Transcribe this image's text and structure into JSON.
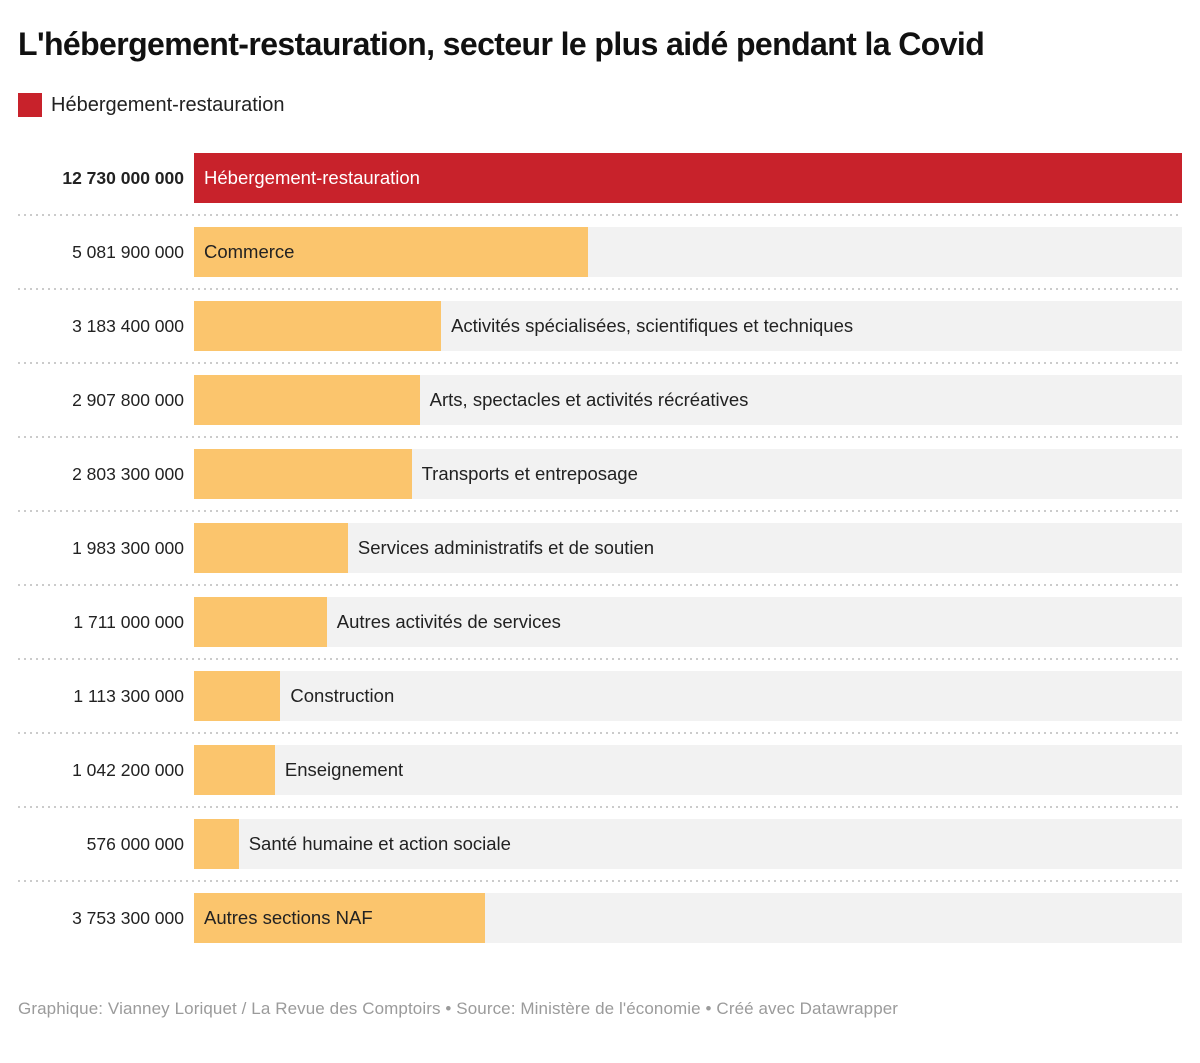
{
  "title": "L'hébergement-restauration, secteur le plus aidé pendant la Covid",
  "legend": {
    "label": "Hébergement-restauration",
    "swatch_color": "#c8222b"
  },
  "colors": {
    "highlight_bar": "#c8222b",
    "default_bar": "#fbc56d",
    "track": "#f2f2f2",
    "bar_label_dark": "#222222",
    "bar_label_light": "#ffffff",
    "separator": "#cbcbcb",
    "footer_text": "#9b9b9b"
  },
  "footer": "Graphique: Vianney Loriquet / La Revue des Comptoirs • Source: Ministère de l'économie • Créé avec Datawrapper",
  "chart_data": {
    "type": "bar",
    "orientation": "horizontal",
    "title": "L'hébergement-restauration, secteur le plus aidé pendant la Covid",
    "legend_position": "top-left",
    "grid": "off",
    "max_value": 12730000000,
    "rows": [
      {
        "category": "Hébergement-restauration",
        "value": 12730000000,
        "value_label": "12 730 000 000",
        "highlight": true,
        "label_position": "inside"
      },
      {
        "category": "Commerce",
        "value": 5081900000,
        "value_label": "5 081 900 000",
        "highlight": false,
        "label_position": "inside"
      },
      {
        "category": "Activités spécialisées, scientifiques et techniques",
        "value": 3183400000,
        "value_label": "3 183 400 000",
        "highlight": false,
        "label_position": "outside"
      },
      {
        "category": "Arts, spectacles et activités récréatives",
        "value": 2907800000,
        "value_label": "2 907 800 000",
        "highlight": false,
        "label_position": "outside"
      },
      {
        "category": "Transports et entreposage",
        "value": 2803300000,
        "value_label": "2 803 300 000",
        "highlight": false,
        "label_position": "outside"
      },
      {
        "category": "Services administratifs et de soutien",
        "value": 1983300000,
        "value_label": "1 983 300 000",
        "highlight": false,
        "label_position": "outside"
      },
      {
        "category": "Autres activités de services",
        "value": 1711000000,
        "value_label": "1 711 000 000",
        "highlight": false,
        "label_position": "outside"
      },
      {
        "category": "Construction",
        "value": 1113300000,
        "value_label": "1 113 300 000",
        "highlight": false,
        "label_position": "outside"
      },
      {
        "category": "Enseignement",
        "value": 1042200000,
        "value_label": "1 042 200 000",
        "highlight": false,
        "label_position": "outside"
      },
      {
        "category": "Santé humaine et action sociale",
        "value": 576000000,
        "value_label": "576 000 000",
        "highlight": false,
        "label_position": "outside"
      },
      {
        "category": "Autres sections NAF",
        "value": 3753300000,
        "value_label": "3 753 300 000",
        "highlight": false,
        "label_position": "inside"
      }
    ]
  }
}
